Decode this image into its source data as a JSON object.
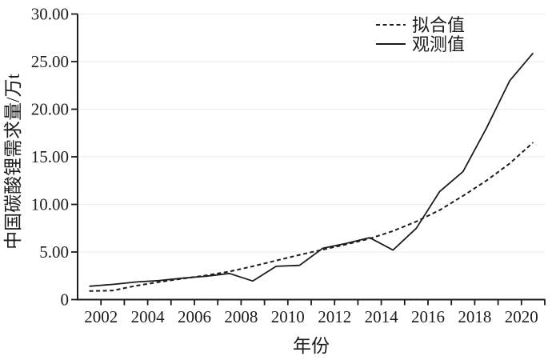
{
  "chart_data": {
    "type": "line",
    "title": "",
    "xlabel": "年份",
    "ylabel": "中国碳酸锂需求量/万t",
    "ylim": [
      0,
      30
    ],
    "x": [
      2001,
      2002,
      2003,
      2004,
      2005,
      2006,
      2007,
      2008,
      2009,
      2010,
      2011,
      2012,
      2013,
      2014,
      2015,
      2016,
      2017,
      2018,
      2019,
      2020
    ],
    "series": [
      {
        "name": "拟合值",
        "style": "dashed",
        "values": [
          0.9,
          0.95,
          1.45,
          1.85,
          2.2,
          2.55,
          2.95,
          3.5,
          4.1,
          4.7,
          5.25,
          5.8,
          6.4,
          7.2,
          8.2,
          9.4,
          10.9,
          12.5,
          14.3,
          16.5
        ]
      },
      {
        "name": "观测值",
        "style": "solid",
        "values": [
          1.4,
          1.6,
          1.85,
          2.0,
          2.25,
          2.45,
          2.75,
          1.95,
          3.5,
          3.6,
          5.4,
          5.9,
          6.5,
          5.2,
          7.5,
          11.35,
          13.45,
          18.0,
          23.0,
          25.9
        ]
      }
    ],
    "ytick_labels": [
      "0",
      "5.00",
      "10.00",
      "15.00",
      "20.00",
      "25.00",
      "30.00"
    ],
    "xtick_labels": [
      "2002",
      "2004",
      "2006",
      "2008",
      "2010",
      "2012",
      "2014",
      "2016",
      "2018",
      "2020"
    ],
    "grid": "horizontal",
    "legend_position": "inside-top-right",
    "colors": {
      "line": "#1c1c1c",
      "grid": "#f0ecec",
      "background": "#ffffff"
    }
  }
}
